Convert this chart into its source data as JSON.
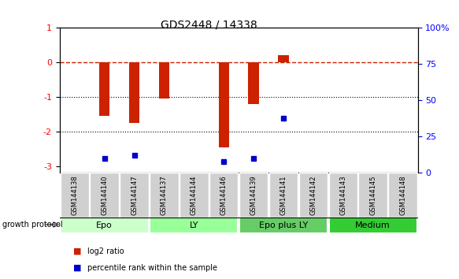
{
  "title": "GDS2448 / 14338",
  "samples": [
    "GSM144138",
    "GSM144140",
    "GSM144147",
    "GSM144137",
    "GSM144144",
    "GSM144146",
    "GSM144139",
    "GSM144141",
    "GSM144142",
    "GSM144143",
    "GSM144145",
    "GSM144148"
  ],
  "log2_ratio": [
    0.0,
    -1.55,
    -1.75,
    -1.05,
    0.0,
    -2.45,
    -1.2,
    0.2,
    0.0,
    0.0,
    0.0,
    0.0
  ],
  "percentile_rank": [
    null,
    10,
    12,
    null,
    null,
    8,
    10,
    38,
    null,
    null,
    null,
    null
  ],
  "groups": [
    {
      "label": "Epo",
      "start": 0,
      "end": 3,
      "color": "#ccffcc"
    },
    {
      "label": "LY",
      "start": 3,
      "end": 6,
      "color": "#99ff99"
    },
    {
      "label": "Epo plus LY",
      "start": 6,
      "end": 9,
      "color": "#66cc66"
    },
    {
      "label": "Medium",
      "start": 9,
      "end": 12,
      "color": "#33cc33"
    }
  ],
  "ylim_left": [
    -3.2,
    1.0
  ],
  "ylim_right": [
    0,
    100
  ],
  "bar_color": "#cc2200",
  "dot_color": "#0000cc",
  "hline_y": 0,
  "hline_color": "#cc2200",
  "dotted_lines": [
    -1,
    -2
  ],
  "xlabel_rotation": 90,
  "group_colors": [
    "#ccffcc",
    "#99ff99",
    "#66cc66",
    "#33cc33"
  ]
}
